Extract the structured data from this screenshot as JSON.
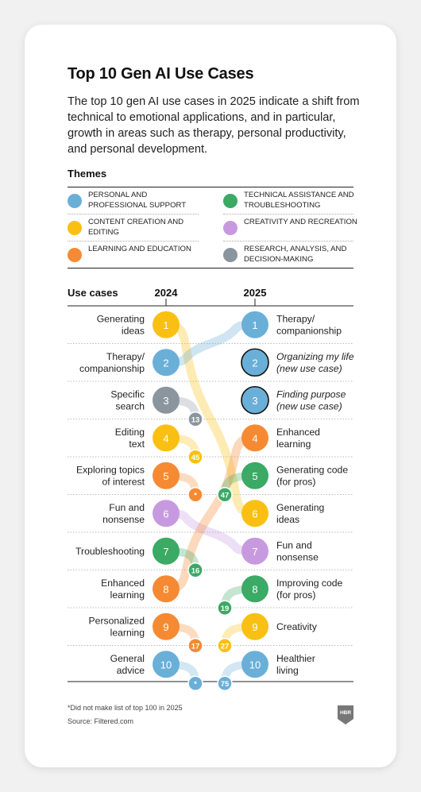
{
  "header": {
    "title": "Top 10 Gen AI Use Cases",
    "subtitle": "The top 10 gen AI use cases in 2025 indicate a shift from technical to emotional applications, and in particular, growth in areas such as therapy, personal productivity, and personal development."
  },
  "themes": {
    "heading": "Themes",
    "items": [
      {
        "key": "personal",
        "label": "Personal and professional support",
        "color": "#6aafd8"
      },
      {
        "key": "technical",
        "label": "Technical assistance and troubleshooting",
        "color": "#3aaa64"
      },
      {
        "key": "content",
        "label": "Content creation and editing",
        "color": "#f9c013"
      },
      {
        "key": "creativity",
        "label": "Creativity and recreation",
        "color": "#c79ae0"
      },
      {
        "key": "learning",
        "label": "Learning and education",
        "color": "#f68a33"
      },
      {
        "key": "research",
        "label": "Research, analysis, and decision-making",
        "color": "#8b959e"
      }
    ]
  },
  "footer": {
    "footnote": "*Did not make list of top 100 in 2025",
    "source": "Source: Filtered.com",
    "logo_text": "HBR"
  },
  "chart_data": {
    "type": "slope",
    "heading": "Use cases",
    "years": [
      "2024",
      "2025"
    ],
    "ranks_2024": [
      {
        "rank": 1,
        "label": "Generating ideas",
        "theme": "content",
        "rank_2025": "6"
      },
      {
        "rank": 2,
        "label": "Therapy/ companionship",
        "theme": "personal",
        "rank_2025": "1"
      },
      {
        "rank": 3,
        "label": "Specific search",
        "theme": "research",
        "rank_2025": "13"
      },
      {
        "rank": 4,
        "label": "Editing text",
        "theme": "content",
        "rank_2025": "45"
      },
      {
        "rank": 5,
        "label": "Exploring topics of interest",
        "theme": "learning",
        "rank_2025": "*"
      },
      {
        "rank": 6,
        "label": "Fun and nonsense",
        "theme": "creativity",
        "rank_2025": "7"
      },
      {
        "rank": 7,
        "label": "Troubleshooting",
        "theme": "technical",
        "rank_2025": "16"
      },
      {
        "rank": 8,
        "label": "Enhanced learning",
        "theme": "learning",
        "rank_2025": "4"
      },
      {
        "rank": 9,
        "label": "Personalized learning",
        "theme": "learning",
        "rank_2025": "17"
      },
      {
        "rank": 10,
        "label": "General advice",
        "theme": "personal",
        "rank_2025": "*"
      }
    ],
    "ranks_2025": [
      {
        "rank": 1,
        "label": "Therapy/ companionship",
        "theme": "personal",
        "new": false,
        "prev_rank": "2"
      },
      {
        "rank": 2,
        "label": "Organizing my life",
        "note": "(new use case)",
        "theme": "personal",
        "new": true,
        "prev_rank": "new"
      },
      {
        "rank": 3,
        "label": "Finding purpose",
        "note": "(new use case)",
        "theme": "personal",
        "new": true,
        "prev_rank": "new"
      },
      {
        "rank": 4,
        "label": "Enhanced learning",
        "theme": "learning",
        "new": false,
        "prev_rank": "8"
      },
      {
        "rank": 5,
        "label": "Generating code (for pros)",
        "theme": "technical",
        "new": false,
        "prev_rank": "47"
      },
      {
        "rank": 6,
        "label": "Generating ideas",
        "theme": "content",
        "new": false,
        "prev_rank": "1"
      },
      {
        "rank": 7,
        "label": "Fun and nonsense",
        "theme": "creativity",
        "new": false,
        "prev_rank": "6"
      },
      {
        "rank": 8,
        "label": "Improving code (for pros)",
        "theme": "technical",
        "new": false,
        "prev_rank": "19"
      },
      {
        "rank": 9,
        "label": "Creativity",
        "theme": "content",
        "new": false,
        "prev_rank": "27"
      },
      {
        "rank": 10,
        "label": "Healthier living",
        "theme": "personal",
        "new": false,
        "prev_rank": "75"
      }
    ]
  }
}
